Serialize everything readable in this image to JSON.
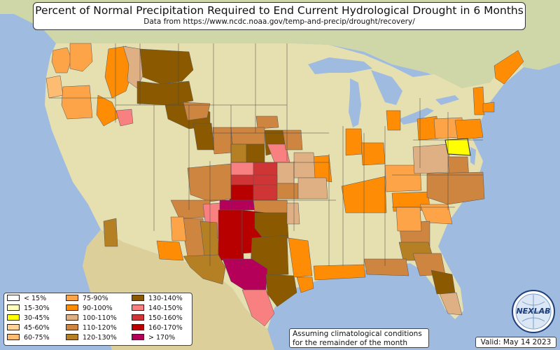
{
  "title": "Percent of Normal Precipitation Required to End Current Hydrological Drought in 6 Months",
  "subtitle": "Data from https://www.ncdc.noaa.gov/temp-and-precip/drought/recovery/",
  "legend": [
    {
      "label": "< 15%",
      "color": "#ffffff"
    },
    {
      "label": "15-30%",
      "color": "#ffffbf"
    },
    {
      "label": "30-45%",
      "color": "#ffff00"
    },
    {
      "label": "45-60%",
      "color": "#fdd39b"
    },
    {
      "label": "60-75%",
      "color": "#fcbd73"
    },
    {
      "label": "75-90%",
      "color": "#fca447"
    },
    {
      "label": "90-100%",
      "color": "#fe8d05"
    },
    {
      "label": "100-110%",
      "color": "#deb083"
    },
    {
      "label": "110-120%",
      "color": "#cd853f"
    },
    {
      "label": "120-130%",
      "color": "#b57f24"
    },
    {
      "label": "130-140%",
      "color": "#8b5a00"
    },
    {
      "label": "140-150%",
      "color": "#f88080"
    },
    {
      "label": "150-160%",
      "color": "#d03535"
    },
    {
      "label": "160-170%",
      "color": "#b80000"
    },
    {
      "label": "> 170%",
      "color": "#b5005a"
    }
  ],
  "note": {
    "line1": "Assuming climatological conditions",
    "line2": "for the remainder of the month"
  },
  "valid": "Valid: May 14 2023",
  "logo": {
    "text": "NEXLAB",
    "icon": "globe-logo"
  },
  "colors": {
    "ocean": "#9fbce0",
    "land": "#e6dfb0",
    "canada": "#cfd6a8",
    "mexico": "#dccf9a",
    "state_border": "#555555"
  }
}
